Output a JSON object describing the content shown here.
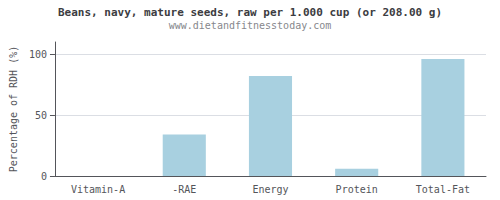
{
  "chart_data": {
    "type": "bar",
    "title": "Beans, navy, mature seeds, raw per 1.000 cup (or 208.00 g)",
    "subtitle": "www.dietandfitnesstoday.com",
    "categories": [
      "Vitamin-A",
      "-RAE",
      "Energy",
      "Protein",
      "Total-Fat"
    ],
    "values": [
      0.0,
      34.0,
      82.0,
      6.0,
      96.0
    ],
    "color": "#a8d0e0",
    "ylabel": "Percentage of RDH (%)",
    "ylim": [
      0,
      110
    ],
    "yticks": [
      0,
      50,
      100
    ],
    "grid": true
  }
}
